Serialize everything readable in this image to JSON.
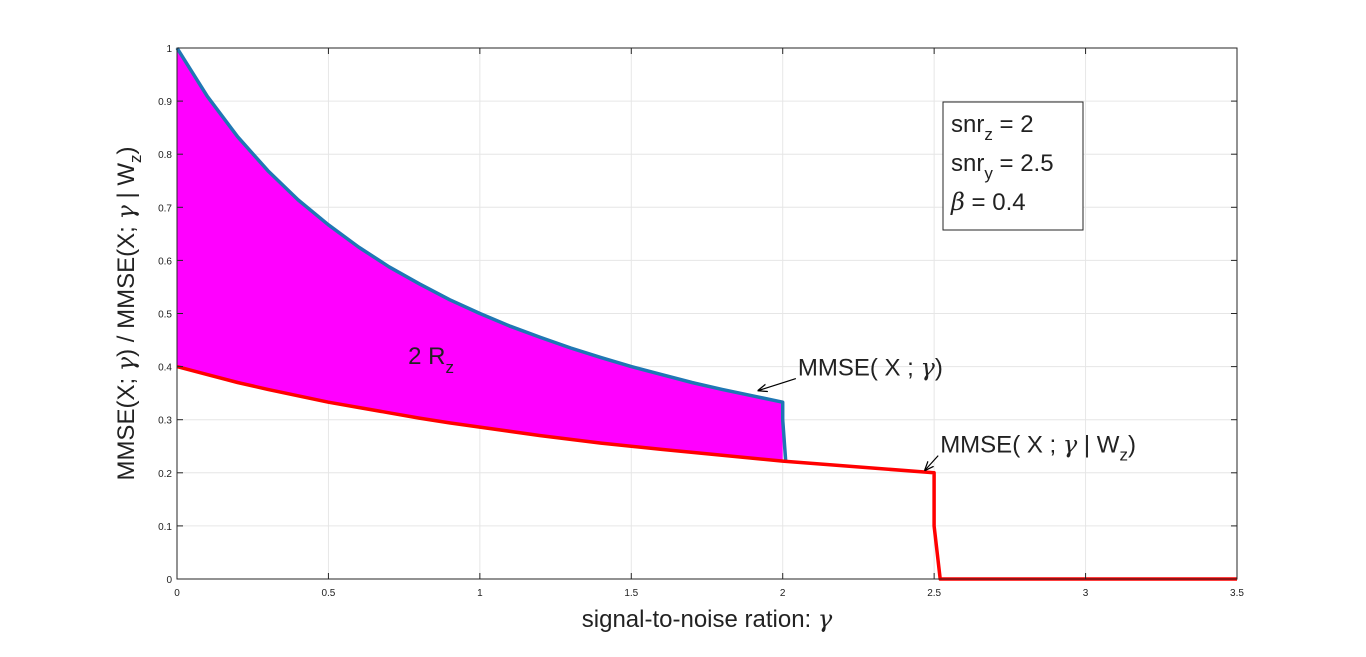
{
  "chart_data": {
    "type": "line",
    "xlabel": {
      "main": "signal-to-noise ration: ",
      "symbol": "γ"
    },
    "ylabel": {
      "p1": "MMSE(X; ",
      "g1": "γ",
      "p2": ") / MMSE(X; ",
      "g2": "γ",
      "p3": " | W",
      "sub": "z",
      "p4": ")"
    },
    "xlim": [
      0,
      3.5
    ],
    "ylim": [
      0,
      1
    ],
    "xticks": [
      0,
      0.5,
      1,
      1.5,
      2,
      2.5,
      3,
      3.5
    ],
    "xtick_labels": [
      "0",
      "0.5",
      "1",
      "1.5",
      "2",
      "2.5",
      "3",
      "3.5"
    ],
    "yticks": [
      0,
      0.1,
      0.2,
      0.3,
      0.4,
      0.5,
      0.6,
      0.7,
      0.8,
      0.9,
      1
    ],
    "ytick_labels": [
      "0",
      "0.1",
      "0.2",
      "0.3",
      "0.4",
      "0.5",
      "0.6",
      "0.7",
      "0.8",
      "0.9",
      "1"
    ],
    "grid": true,
    "series": [
      {
        "color": "#1f77b4",
        "x": [
          0,
          0.1,
          0.2,
          0.3,
          0.4,
          0.5,
          0.6,
          0.7,
          0.8,
          0.9,
          1.0,
          1.1,
          1.2,
          1.3,
          1.4,
          1.5,
          1.6,
          1.7,
          1.8,
          1.9,
          2.0,
          2.0,
          2.01
        ],
        "y": [
          1.0,
          0.909,
          0.833,
          0.769,
          0.714,
          0.667,
          0.625,
          0.588,
          0.556,
          0.526,
          0.5,
          0.476,
          0.455,
          0.435,
          0.417,
          0.4,
          0.385,
          0.37,
          0.357,
          0.345,
          0.333,
          0.3,
          0.222
        ]
      },
      {
        "color": "#ff0000",
        "x": [
          0,
          0.1,
          0.2,
          0.3,
          0.4,
          0.5,
          0.6,
          0.7,
          0.8,
          0.9,
          1.0,
          1.2,
          1.4,
          1.6,
          1.8,
          2.0,
          2.5,
          2.5,
          2.52,
          3.5
        ],
        "y": [
          0.4,
          0.385,
          0.37,
          0.357,
          0.345,
          0.333,
          0.323,
          0.313,
          0.303,
          0.294,
          0.286,
          0.27,
          0.256,
          0.244,
          0.233,
          0.222,
          0.2,
          0.1,
          0,
          0
        ]
      }
    ],
    "fill": {
      "color": "#ff00ff",
      "x": [
        0,
        0.1,
        0.2,
        0.3,
        0.4,
        0.5,
        0.6,
        0.7,
        0.8,
        0.9,
        1.0,
        1.1,
        1.2,
        1.3,
        1.4,
        1.5,
        1.6,
        1.7,
        1.8,
        1.9,
        2.0
      ],
      "upper": [
        1.0,
        0.909,
        0.833,
        0.769,
        0.714,
        0.667,
        0.625,
        0.588,
        0.556,
        0.526,
        0.5,
        0.476,
        0.455,
        0.435,
        0.417,
        0.4,
        0.385,
        0.37,
        0.357,
        0.345,
        0.333
      ],
      "lower": [
        0.4,
        0.385,
        0.37,
        0.357,
        0.345,
        0.333,
        0.323,
        0.313,
        0.303,
        0.294,
        0.286,
        0.278,
        0.27,
        0.263,
        0.256,
        0.25,
        0.244,
        0.238,
        0.233,
        0.227,
        0.222
      ]
    },
    "region_label": {
      "main": "2 R",
      "sub": "z",
      "x": 0.75,
      "y": 0.42
    },
    "annotations": [
      {
        "text": "MMSE( X ; ",
        "greek": "γ",
        "tail": ")",
        "sub": "",
        "text_x": 2.05,
        "text_y": 0.4,
        "arrow_x": 1.92,
        "arrow_y": 0.355
      },
      {
        "text": "MMSE( X ; ",
        "greek": "γ",
        "tail": " | W",
        "sub": "z",
        "tail2": ")",
        "text_x": 2.52,
        "text_y": 0.255,
        "arrow_x": 2.47,
        "arrow_y": 0.205
      }
    ],
    "legend_box": {
      "position": "top-right",
      "lines": [
        {
          "main": "snr",
          "sub": "z",
          "rest": " = 2"
        },
        {
          "main": "snr",
          "sub": "y",
          "rest": " = 2.5"
        },
        {
          "main": "β",
          "sub": "",
          "rest": " = 0.4"
        }
      ]
    }
  }
}
